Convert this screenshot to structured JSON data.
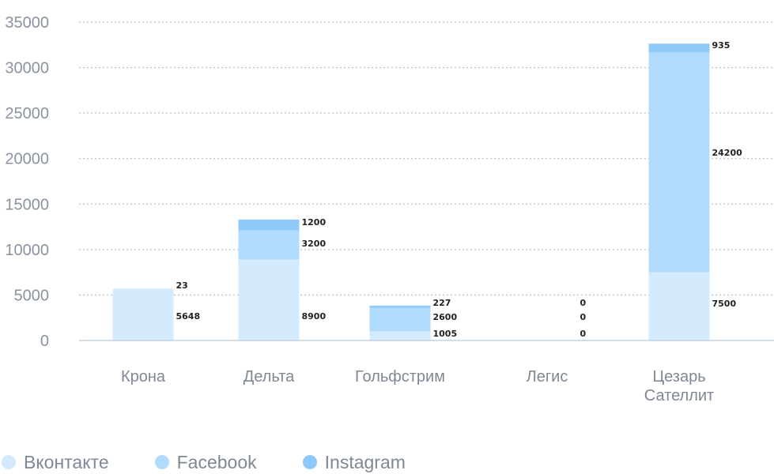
{
  "chart_data": {
    "type": "bar",
    "stacked": true,
    "categories": [
      "Крона",
      "Дельта",
      "Гольфстрим",
      "Легис",
      "Цезарь Сателлит"
    ],
    "series": [
      {
        "name": "Вконтакте",
        "values": [
          5648,
          8900,
          1005,
          0,
          7500
        ],
        "color": "#d4eafd"
      },
      {
        "name": "Facebook",
        "values": [
          23,
          3200,
          2600,
          0,
          24200
        ],
        "color": "#b0dbfc"
      },
      {
        "name": "Instagram",
        "values": [
          0,
          1200,
          227,
          0,
          935
        ],
        "color": "#8ec9f9"
      }
    ],
    "data_labels": [
      [
        "5648",
        "23",
        ""
      ],
      [
        "8900",
        "3200",
        "1200"
      ],
      [
        "1005",
        "2600",
        "227"
      ],
      [
        "0",
        "0",
        "0"
      ],
      [
        "7500",
        "24200",
        "935"
      ]
    ],
    "yticks": [
      "0",
      "5000",
      "10000",
      "15000",
      "20000",
      "25000",
      "30000",
      "35000"
    ],
    "ylim": [
      0,
      35000
    ],
    "grid": true,
    "legend_position": "bottom-left"
  },
  "legend": {
    "items": [
      {
        "label": "Вконтакте",
        "color": "#d4eafd"
      },
      {
        "label": "Facebook",
        "color": "#b0dbfc"
      },
      {
        "label": "Instagram",
        "color": "#8ec9f9"
      }
    ]
  }
}
